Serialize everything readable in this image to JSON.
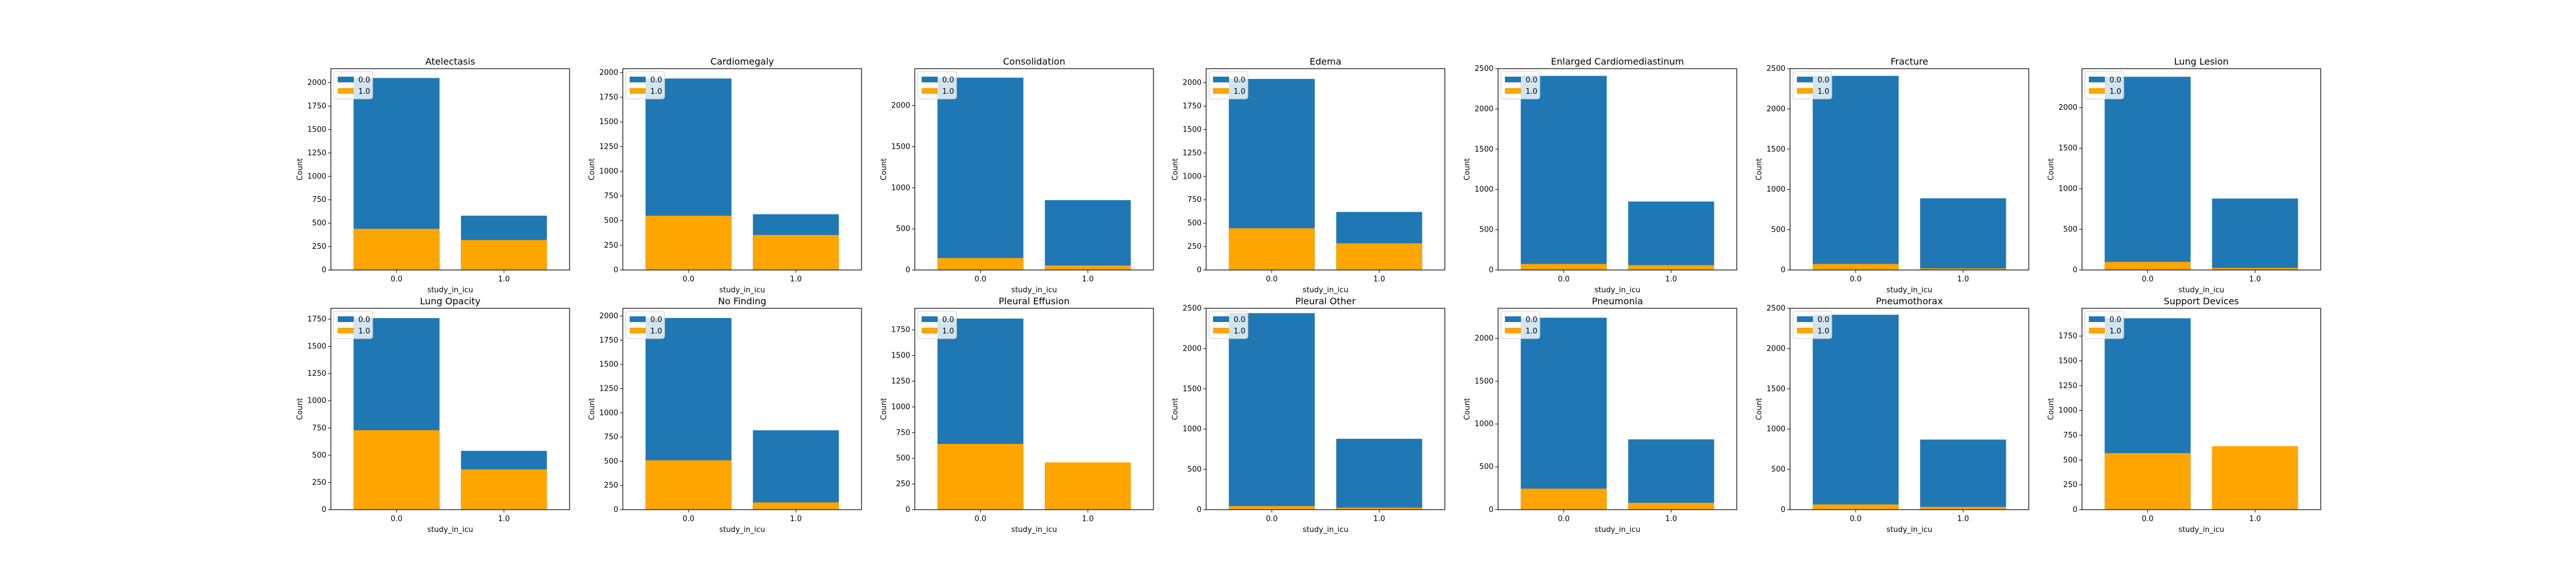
{
  "colors": {
    "series_0": "#1f77b4",
    "series_1": "#ffa500",
    "axis": "#000000",
    "background": "#ffffff"
  },
  "chart_data": [
    {
      "type": "bar",
      "title": "Atelectasis",
      "xlabel": "study_in_icu",
      "ylabel": "Count",
      "categories": [
        "0.0",
        "1.0"
      ],
      "ylim": [
        0,
        2150
      ],
      "yticks": [
        "0",
        "250",
        "500",
        "750",
        "1000",
        "1250",
        "1500",
        "1750",
        "2000"
      ],
      "series": [
        {
          "name": "0.0",
          "values": [
            2050,
            580
          ]
        },
        {
          "name": "1.0",
          "values": [
            440,
            320
          ]
        }
      ],
      "legend": "upper-left"
    },
    {
      "type": "bar",
      "title": "Cardiomegaly",
      "xlabel": "study_in_icu",
      "ylabel": "Count",
      "categories": [
        "0.0",
        "1.0"
      ],
      "ylim": [
        0,
        2040
      ],
      "yticks": [
        "0",
        "250",
        "500",
        "750",
        "1000",
        "1250",
        "1500",
        "1750",
        "2000"
      ],
      "series": [
        {
          "name": "0.0",
          "values": [
            1940,
            565
          ]
        },
        {
          "name": "1.0",
          "values": [
            550,
            355
          ]
        }
      ],
      "legend": "upper-left"
    },
    {
      "type": "bar",
      "title": "Consolidation",
      "xlabel": "study_in_icu",
      "ylabel": "Count",
      "categories": [
        "0.0",
        "1.0"
      ],
      "ylim": [
        0,
        2450
      ],
      "yticks": [
        "0",
        "500",
        "1000",
        "1500",
        "2000"
      ],
      "series": [
        {
          "name": "0.0",
          "values": [
            2340,
            850
          ]
        },
        {
          "name": "1.0",
          "values": [
            145,
            55
          ]
        }
      ],
      "legend": "upper-left"
    },
    {
      "type": "bar",
      "title": "Edema",
      "xlabel": "study_in_icu",
      "ylabel": "Count",
      "categories": [
        "0.0",
        "1.0"
      ],
      "ylim": [
        0,
        2150
      ],
      "yticks": [
        "0",
        "250",
        "500",
        "750",
        "1000",
        "1250",
        "1500",
        "1750",
        "2000"
      ],
      "series": [
        {
          "name": "0.0",
          "values": [
            2040,
            620
          ]
        },
        {
          "name": "1.0",
          "values": [
            445,
            285
          ]
        }
      ],
      "legend": "upper-left"
    },
    {
      "type": "bar",
      "title": "Enlarged Cardiomediastinum",
      "xlabel": "study_in_icu",
      "ylabel": "Count",
      "categories": [
        "0.0",
        "1.0"
      ],
      "ylim": [
        0,
        2500
      ],
      "yticks": [
        "0",
        "500",
        "1000",
        "1500",
        "2000",
        "2500"
      ],
      "series": [
        {
          "name": "0.0",
          "values": [
            2410,
            850
          ]
        },
        {
          "name": "1.0",
          "values": [
            75,
            60
          ]
        }
      ],
      "legend": "upper-left"
    },
    {
      "type": "bar",
      "title": "Fracture",
      "xlabel": "study_in_icu",
      "ylabel": "Count",
      "categories": [
        "0.0",
        "1.0"
      ],
      "ylim": [
        0,
        2500
      ],
      "yticks": [
        "0",
        "500",
        "1000",
        "1500",
        "2000",
        "2500"
      ],
      "series": [
        {
          "name": "0.0",
          "values": [
            2410,
            890
          ]
        },
        {
          "name": "1.0",
          "values": [
            75,
            20
          ]
        }
      ],
      "legend": "upper-left"
    },
    {
      "type": "bar",
      "title": "Lung Lesion",
      "xlabel": "study_in_icu",
      "ylabel": "Count",
      "categories": [
        "0.0",
        "1.0"
      ],
      "ylim": [
        0,
        2480
      ],
      "yticks": [
        "0",
        "500",
        "1000",
        "1500",
        "2000"
      ],
      "series": [
        {
          "name": "0.0",
          "values": [
            2380,
            880
          ]
        },
        {
          "name": "1.0",
          "values": [
            100,
            25
          ]
        }
      ],
      "legend": "upper-left"
    },
    {
      "type": "bar",
      "title": "Lung Opacity",
      "xlabel": "study_in_icu",
      "ylabel": "Count",
      "categories": [
        "0.0",
        "1.0"
      ],
      "ylim": [
        0,
        1850
      ],
      "yticks": [
        "0",
        "250",
        "500",
        "750",
        "1000",
        "1250",
        "1500",
        "1750"
      ],
      "series": [
        {
          "name": "0.0",
          "values": [
            1760,
            540
          ]
        },
        {
          "name": "1.0",
          "values": [
            730,
            370
          ]
        }
      ],
      "legend": "upper-left"
    },
    {
      "type": "bar",
      "title": "No Finding",
      "xlabel": "study_in_icu",
      "ylabel": "Count",
      "categories": [
        "0.0",
        "1.0"
      ],
      "ylim": [
        0,
        2080
      ],
      "yticks": [
        "0",
        "250",
        "500",
        "750",
        "1000",
        "1250",
        "1500",
        "1750",
        "2000"
      ],
      "series": [
        {
          "name": "0.0",
          "values": [
            1980,
            820
          ]
        },
        {
          "name": "1.0",
          "values": [
            510,
            75
          ]
        }
      ],
      "legend": "upper-left"
    },
    {
      "type": "bar",
      "title": "Pleural Effusion",
      "xlabel": "study_in_icu",
      "ylabel": "Count",
      "categories": [
        "0.0",
        "1.0"
      ],
      "ylim": [
        0,
        1960
      ],
      "yticks": [
        "0",
        "250",
        "500",
        "750",
        "1000",
        "1250",
        "1500",
        "1750"
      ],
      "series": [
        {
          "name": "0.0",
          "values": [
            1860,
            445
          ]
        },
        {
          "name": "1.0",
          "values": [
            640,
            460
          ]
        }
      ],
      "legend": "upper-left"
    },
    {
      "type": "bar",
      "title": "Pleural Other",
      "xlabel": "study_in_icu",
      "ylabel": "Count",
      "categories": [
        "0.0",
        "1.0"
      ],
      "ylim": [
        0,
        2500
      ],
      "yticks": [
        "0",
        "500",
        "1000",
        "1500",
        "2000",
        "2500"
      ],
      "series": [
        {
          "name": "0.0",
          "values": [
            2440,
            880
          ]
        },
        {
          "name": "1.0",
          "values": [
            45,
            25
          ]
        }
      ],
      "legend": "upper-left"
    },
    {
      "type": "bar",
      "title": "Pneumonia",
      "xlabel": "study_in_icu",
      "ylabel": "Count",
      "categories": [
        "0.0",
        "1.0"
      ],
      "ylim": [
        0,
        2350
      ],
      "yticks": [
        "0",
        "500",
        "1000",
        "1500",
        "2000"
      ],
      "series": [
        {
          "name": "0.0",
          "values": [
            2240,
            820
          ]
        },
        {
          "name": "1.0",
          "values": [
            245,
            80
          ]
        }
      ],
      "legend": "upper-left"
    },
    {
      "type": "bar",
      "title": "Pneumothorax",
      "xlabel": "study_in_icu",
      "ylabel": "Count",
      "categories": [
        "0.0",
        "1.0"
      ],
      "ylim": [
        0,
        2500
      ],
      "yticks": [
        "0",
        "500",
        "1000",
        "1500",
        "2000",
        "2500"
      ],
      "series": [
        {
          "name": "0.0",
          "values": [
            2420,
            870
          ]
        },
        {
          "name": "1.0",
          "values": [
            65,
            35
          ]
        }
      ],
      "legend": "upper-left"
    },
    {
      "type": "bar",
      "title": "Support Devices",
      "xlabel": "study_in_icu",
      "ylabel": "Count",
      "categories": [
        "0.0",
        "1.0"
      ],
      "ylim": [
        0,
        2030
      ],
      "yticks": [
        "0",
        "250",
        "500",
        "750",
        "1000",
        "1250",
        "1500",
        "1750"
      ],
      "series": [
        {
          "name": "0.0",
          "values": [
            1930,
            570
          ]
        },
        {
          "name": "1.0",
          "values": [
            570,
            640
          ]
        }
      ],
      "legend": "upper-left"
    }
  ]
}
